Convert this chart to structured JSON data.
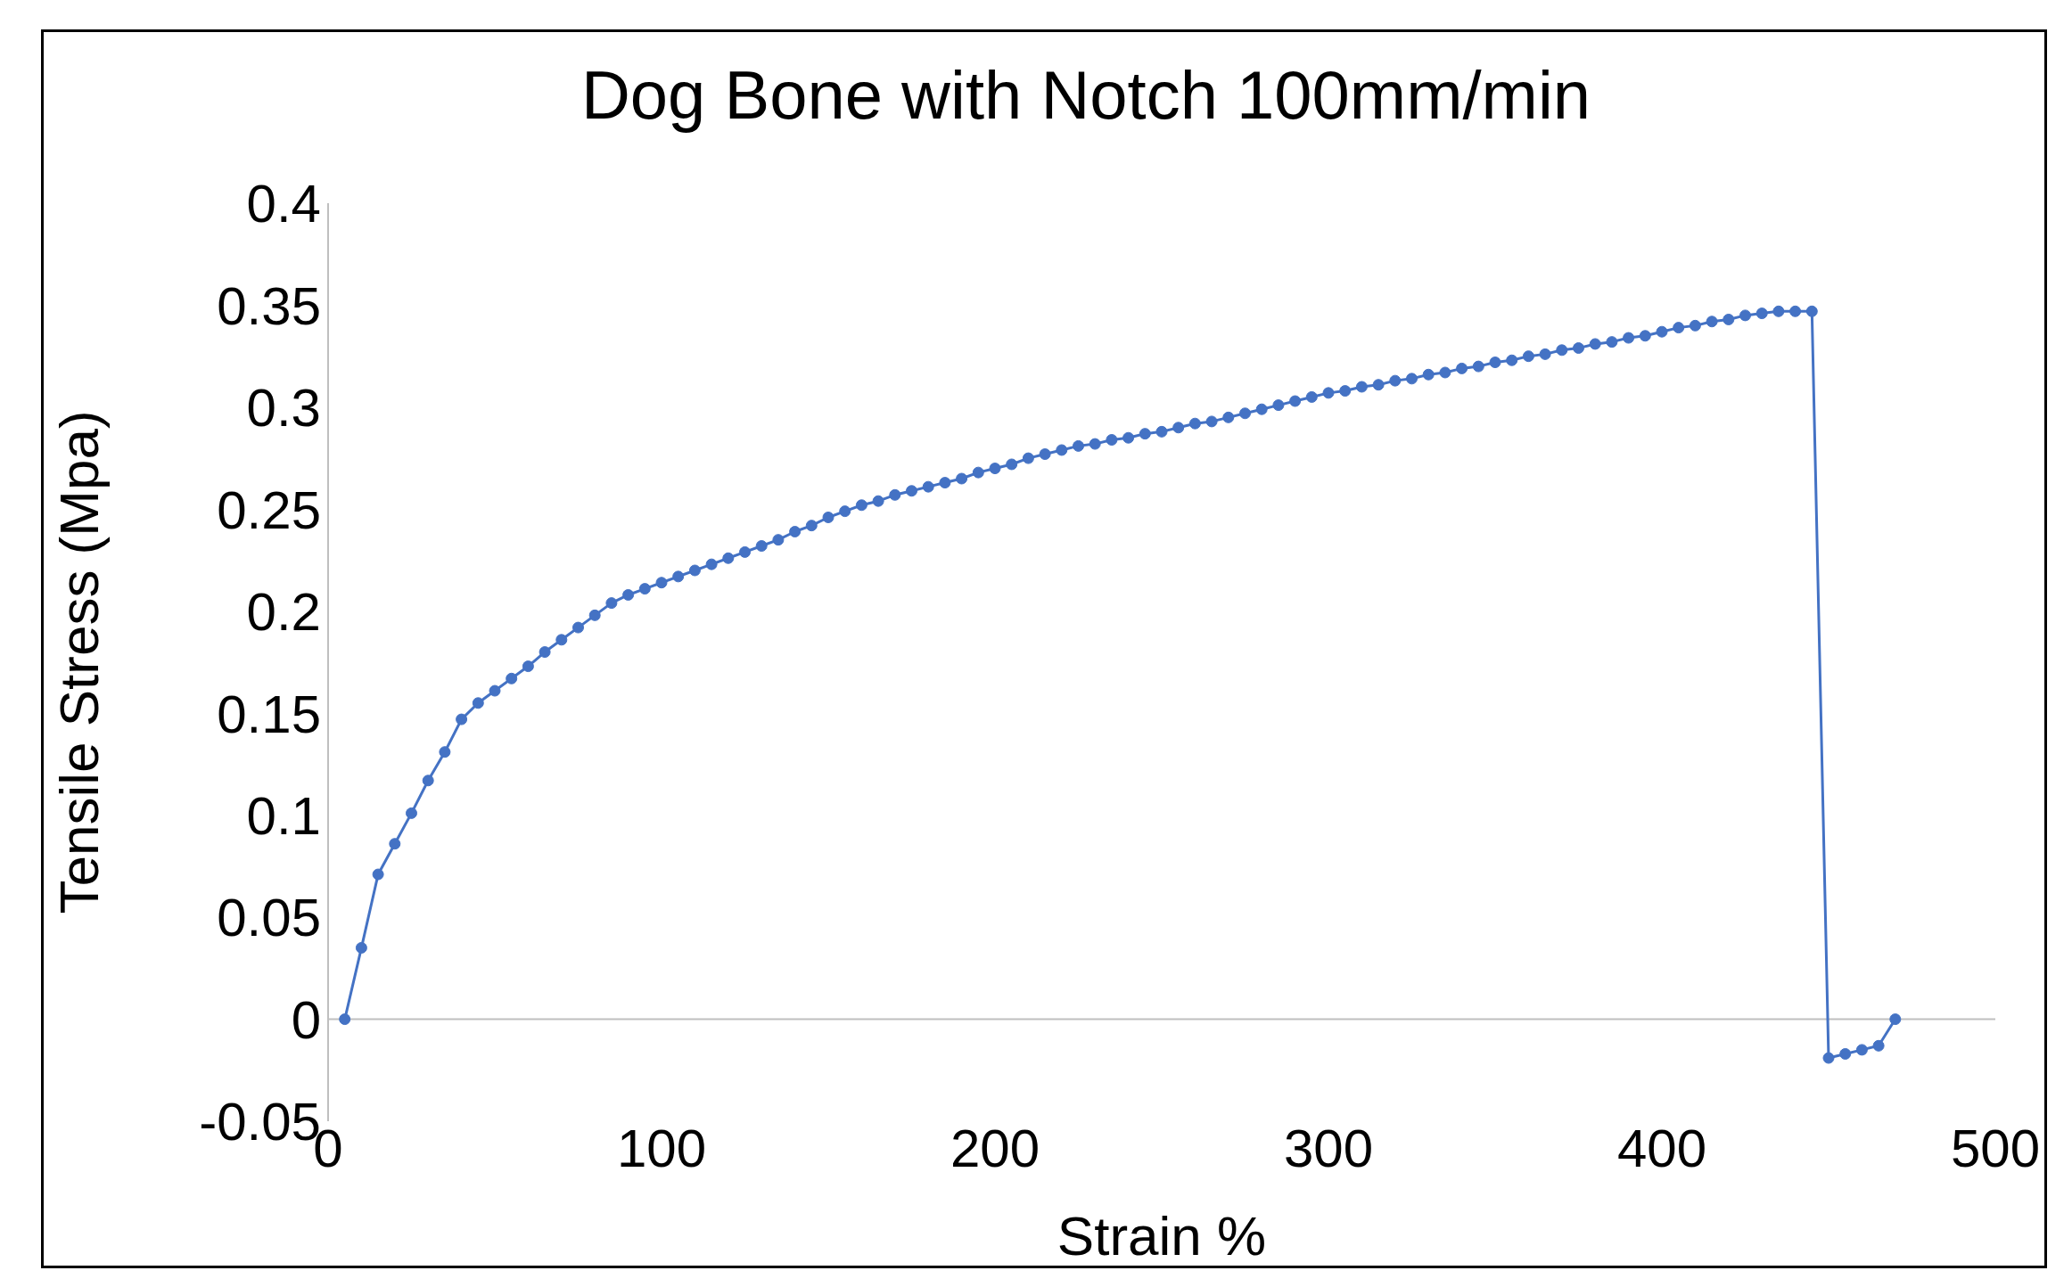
{
  "chart_data": {
    "type": "line",
    "title": "Dog Bone with Notch 100mm/min",
    "xlabel": "Strain %",
    "ylabel": "Tensile Stress (Mpa)",
    "x": [
      5,
      10,
      15,
      20,
      25,
      30,
      35,
      40,
      45,
      50,
      55,
      60,
      65,
      70,
      75,
      80,
      85,
      90,
      95,
      100,
      105,
      110,
      115,
      120,
      125,
      130,
      135,
      140,
      145,
      150,
      155,
      160,
      165,
      170,
      175,
      180,
      185,
      190,
      195,
      200,
      205,
      210,
      215,
      220,
      225,
      230,
      235,
      240,
      245,
      250,
      255,
      260,
      265,
      270,
      275,
      280,
      285,
      290,
      295,
      300,
      305,
      310,
      315,
      320,
      325,
      330,
      335,
      340,
      345,
      350,
      355,
      360,
      365,
      370,
      375,
      380,
      385,
      390,
      395,
      400,
      405,
      410,
      415,
      420,
      425,
      430,
      435,
      440,
      445,
      450,
      455,
      460,
      465,
      470
    ],
    "series": [
      {
        "color": "#4472c4",
        "values": [
          0,
          0.035,
          0.071,
          0.086,
          0.101,
          0.117,
          0.131,
          0.147,
          0.155,
          0.161,
          0.167,
          0.173,
          0.18,
          0.186,
          0.192,
          0.198,
          0.204,
          0.208,
          0.211,
          0.214,
          0.217,
          0.22,
          0.223,
          0.226,
          0.229,
          0.232,
          0.235,
          0.239,
          0.242,
          0.246,
          0.249,
          0.252,
          0.254,
          0.257,
          0.259,
          0.261,
          0.263,
          0.265,
          0.268,
          0.27,
          0.272,
          0.275,
          0.277,
          0.279,
          0.281,
          0.282,
          0.284,
          0.285,
          0.287,
          0.288,
          0.29,
          0.292,
          0.293,
          0.295,
          0.297,
          0.299,
          0.301,
          0.303,
          0.305,
          0.307,
          0.308,
          0.31,
          0.311,
          0.313,
          0.314,
          0.316,
          0.317,
          0.319,
          0.32,
          0.322,
          0.323,
          0.325,
          0.326,
          0.328,
          0.329,
          0.331,
          0.332,
          0.334,
          0.335,
          0.337,
          0.339,
          0.34,
          0.342,
          0.343,
          0.345,
          0.346,
          0.347,
          0.347,
          0.347,
          -0.019,
          -0.017,
          -0.015,
          -0.013,
          0
        ]
      }
    ],
    "xlim": [
      0,
      500
    ],
    "xticks": [
      0,
      100,
      200,
      300,
      400,
      500
    ],
    "ylim": [
      -0.05,
      0.4
    ],
    "yticks": [
      -0.05,
      0,
      0.05,
      0.1,
      0.15,
      0.2,
      0.25,
      0.3,
      0.35,
      0.4
    ],
    "grid": false,
    "legend": false,
    "marker": "circle",
    "line_style": "solid"
  }
}
